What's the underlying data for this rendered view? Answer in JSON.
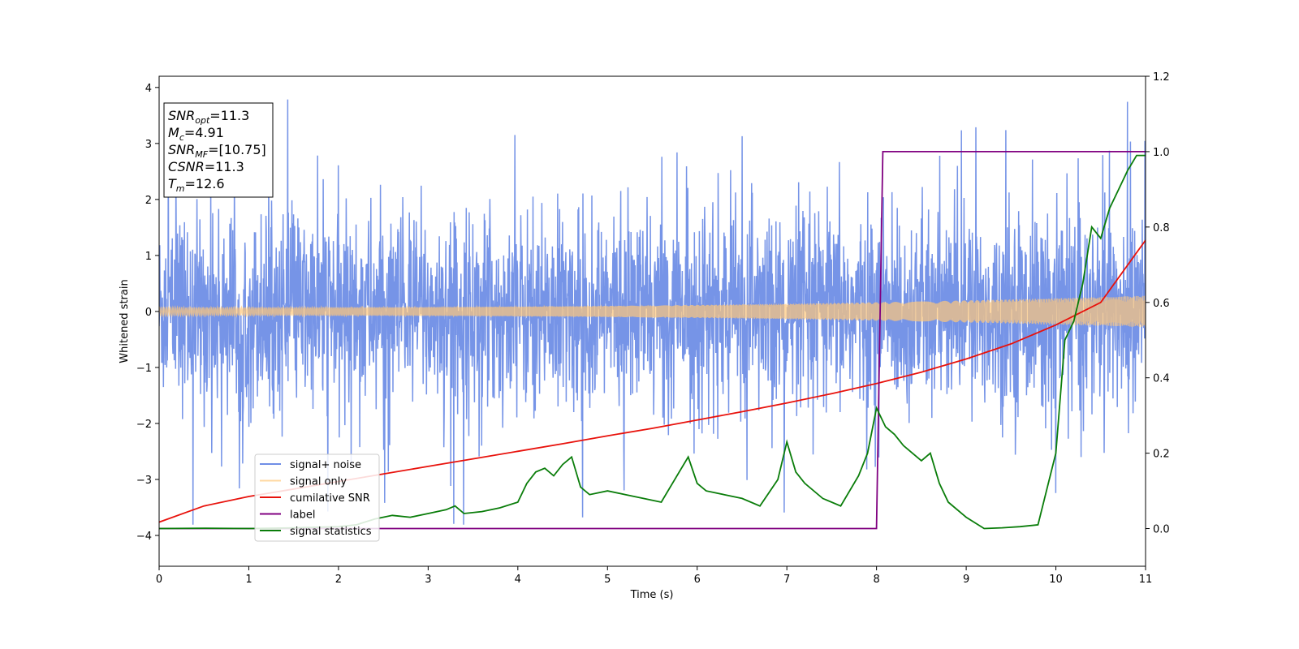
{
  "chart_data": {
    "type": "line",
    "xlabel": "Time (s)",
    "ylabel": "Whitened strain",
    "xlim": [
      0,
      11
    ],
    "ylim_left": [
      -4.55,
      4.2
    ],
    "ylim_right": [
      -0.1,
      1.2
    ],
    "xticks": [
      "0",
      "1",
      "2",
      "3",
      "4",
      "5",
      "6",
      "7",
      "8",
      "9",
      "10",
      "11"
    ],
    "yticks_left": [
      "−4",
      "−3",
      "−2",
      "−1",
      "0",
      "1",
      "2",
      "3",
      "4"
    ],
    "yticks_right": [
      "0.0",
      "0.2",
      "0.4",
      "0.6",
      "0.8",
      "1.0",
      "1.2"
    ],
    "grid": false,
    "legend_position": "lower-left",
    "annotation": {
      "lines": [
        {
          "main": "SNR",
          "sub": "opt",
          "rest": "=11.3"
        },
        {
          "main": "M",
          "sub": "c",
          "rest": "=4.91"
        },
        {
          "main": "SNR",
          "sub": "MF",
          "rest": "=[10.75]"
        },
        {
          "main": "CSNR",
          "sub": "",
          "rest": "=11.3"
        },
        {
          "main": "T",
          "sub": "m",
          "rest": "=12.6"
        }
      ]
    },
    "series": [
      {
        "name": "signal+ noise",
        "color": "#6f8ee6",
        "axis": "left",
        "kind": "noise",
        "typical_range": [
          -1.7,
          1.7
        ],
        "extreme_range": [
          -4.15,
          3.85
        ]
      },
      {
        "name": "signal only",
        "color": "#ffc87a",
        "axis": "left",
        "kind": "chirp",
        "amplitude_start": 0.07,
        "amplitude_end": 0.28
      },
      {
        "name": "cumilative SNR",
        "color": "#e8120c",
        "axis": "right",
        "x": [
          0,
          0.5,
          1,
          1.5,
          2,
          2.5,
          3,
          3.5,
          4,
          4.5,
          5,
          5.5,
          6,
          6.5,
          7,
          7.5,
          8,
          8.5,
          9,
          9.5,
          10,
          10.5,
          11
        ],
        "y": [
          0.017,
          0.06,
          0.085,
          0.105,
          0.125,
          0.145,
          0.165,
          0.185,
          0.205,
          0.225,
          0.246,
          0.266,
          0.288,
          0.31,
          0.333,
          0.358,
          0.385,
          0.415,
          0.45,
          0.49,
          0.54,
          0.6,
          0.765
        ]
      },
      {
        "name": "label",
        "color": "#800080",
        "axis": "right",
        "x": [
          0,
          8.0,
          8.07,
          11
        ],
        "y": [
          0.0,
          0.0,
          1.0,
          1.0
        ]
      },
      {
        "name": "signal statistics",
        "color": "#0a7d0a",
        "axis": "right",
        "x": [
          0,
          0.5,
          1,
          1.5,
          2,
          2.2,
          2.4,
          2.6,
          2.8,
          3.0,
          3.2,
          3.3,
          3.4,
          3.6,
          3.8,
          4.0,
          4.1,
          4.2,
          4.3,
          4.4,
          4.5,
          4.6,
          4.7,
          4.8,
          5.0,
          5.2,
          5.4,
          5.6,
          5.8,
          5.9,
          6.0,
          6.1,
          6.3,
          6.5,
          6.7,
          6.9,
          7.0,
          7.1,
          7.2,
          7.4,
          7.6,
          7.8,
          7.9,
          8.0,
          8.1,
          8.2,
          8.3,
          8.4,
          8.5,
          8.6,
          8.7,
          8.8,
          9.0,
          9.2,
          9.4,
          9.6,
          9.8,
          10.0,
          10.1,
          10.2,
          10.3,
          10.4,
          10.5,
          10.6,
          10.7,
          10.8,
          10.9,
          11.0
        ],
        "y": [
          0.0,
          0.001,
          0.0,
          0.002,
          0.005,
          0.01,
          0.025,
          0.035,
          0.03,
          0.04,
          0.05,
          0.06,
          0.04,
          0.045,
          0.055,
          0.07,
          0.12,
          0.15,
          0.16,
          0.14,
          0.17,
          0.19,
          0.11,
          0.09,
          0.1,
          0.09,
          0.08,
          0.07,
          0.15,
          0.19,
          0.12,
          0.1,
          0.09,
          0.08,
          0.06,
          0.13,
          0.23,
          0.15,
          0.12,
          0.08,
          0.06,
          0.14,
          0.2,
          0.32,
          0.27,
          0.25,
          0.22,
          0.2,
          0.18,
          0.2,
          0.12,
          0.07,
          0.03,
          0.0,
          0.002,
          0.005,
          0.01,
          0.2,
          0.5,
          0.55,
          0.65,
          0.8,
          0.77,
          0.85,
          0.9,
          0.95,
          0.99,
          0.99
        ]
      }
    ]
  }
}
